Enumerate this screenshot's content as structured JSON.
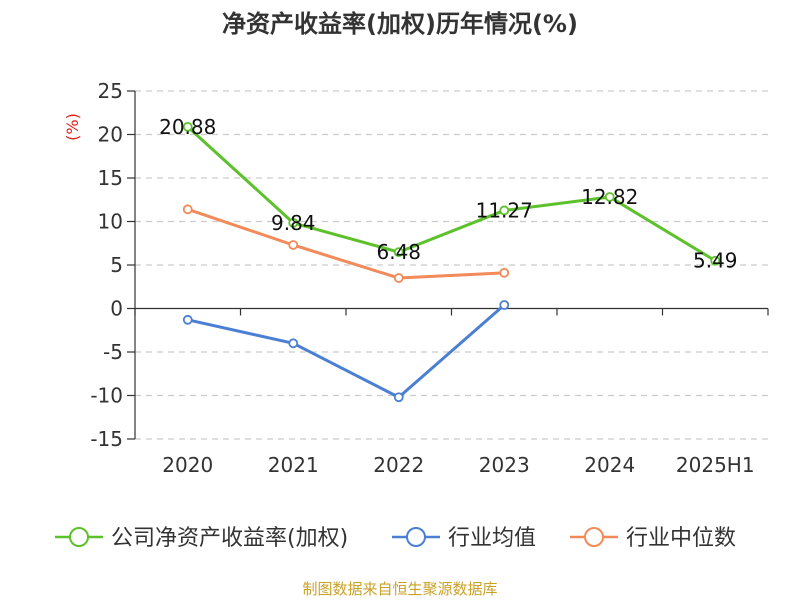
{
  "chart_data": {
    "type": "line",
    "title": "净资产收益率(加权)历年情况(%)",
    "ylabel": "(%)",
    "xlabel": "",
    "categories": [
      "2020",
      "2021",
      "2022",
      "2023",
      "2024",
      "2025H1"
    ],
    "ylim": [
      -15,
      25
    ],
    "yticks": [
      25,
      20,
      15,
      10,
      5,
      0,
      -5,
      -10,
      -15
    ],
    "grid": true,
    "legend_position": "bottom",
    "series": [
      {
        "name": "公司净资产收益率(加权)",
        "color": "#5cc12a",
        "values": [
          20.88,
          9.84,
          6.48,
          11.27,
          12.82,
          5.49
        ],
        "labels": [
          "20.88",
          "9.84",
          "6.48",
          "11.27",
          "12.82",
          "5.49"
        ]
      },
      {
        "name": "行业均值",
        "color": "#4a7fd4",
        "values": [
          -1.3,
          -4.0,
          -10.2,
          0.4,
          null,
          null
        ]
      },
      {
        "name": "行业中位数",
        "color": "#f28a5a",
        "values": [
          11.4,
          7.3,
          3.5,
          4.1,
          null,
          null
        ]
      }
    ],
    "source": "制图数据来自恒生聚源数据库"
  }
}
